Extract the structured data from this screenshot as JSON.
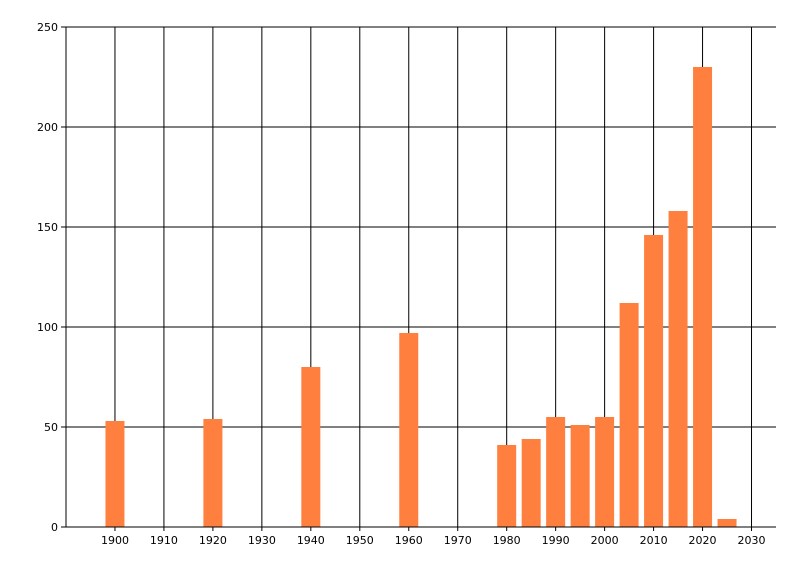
{
  "chart_data": {
    "type": "bar",
    "title": "",
    "xlabel": "",
    "ylabel": "",
    "x": [
      1900,
      1920,
      1940,
      1960,
      1980,
      1985,
      1990,
      1995,
      2000,
      2005,
      2010,
      2015,
      2020,
      2025
    ],
    "values": [
      53,
      54,
      80,
      97,
      41,
      44,
      55,
      51,
      55,
      112,
      146,
      158,
      230,
      4
    ],
    "bar_color": "#ff7f3f",
    "xlim": [
      1890,
      2035
    ],
    "ylim": [
      0,
      250
    ],
    "xticks": [
      "1900",
      "1910",
      "1920",
      "1930",
      "1940",
      "1950",
      "1960",
      "1970",
      "1980",
      "1990",
      "2000",
      "2010",
      "2020",
      "2030"
    ],
    "yticks": [
      "0",
      "50",
      "100",
      "150",
      "200",
      "250"
    ],
    "grid": true,
    "legend": "none"
  }
}
